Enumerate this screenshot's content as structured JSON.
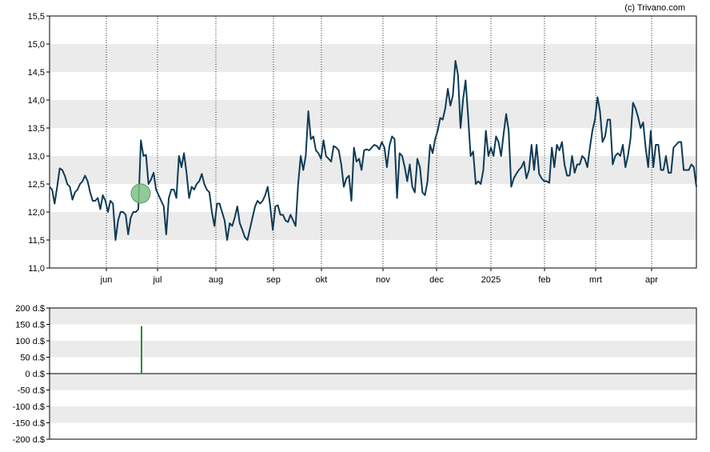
{
  "copyright": "(c) Trivano.com",
  "chart_data": [
    {
      "type": "line",
      "grid": true,
      "ylim": [
        11.0,
        15.5
      ],
      "y_ticks": [
        "15,5",
        "15,0",
        "14,5",
        "14,0",
        "13,5",
        "13,0",
        "12,5",
        "12,0",
        "11,5",
        "11,0"
      ],
      "x_ticks": [
        "jun",
        "jul",
        "aug",
        "sep",
        "okt",
        "nov",
        "dec",
        "2025",
        "feb",
        "mrt",
        "apr"
      ],
      "series": [
        {
          "color": "#0d3a55",
          "values": [
            12.45,
            12.4,
            12.15,
            12.45,
            12.78,
            12.75,
            12.65,
            12.5,
            12.45,
            12.22,
            12.35,
            12.4,
            12.5,
            12.55,
            12.65,
            12.55,
            12.35,
            12.2,
            12.2,
            12.25,
            12.05,
            12.3,
            12.2,
            12.0,
            12.2,
            12.15,
            11.5,
            11.85,
            12.0,
            12.0,
            11.95,
            11.6,
            11.9,
            12.0,
            12.0,
            12.05,
            13.28,
            13.0,
            13.02,
            12.5,
            12.58,
            12.7,
            12.4,
            12.3,
            12.2,
            12.1,
            11.6,
            12.25,
            12.4,
            12.4,
            12.25,
            13.0,
            12.8,
            13.05,
            12.7,
            12.25,
            12.45,
            12.4,
            12.5,
            12.55,
            12.68,
            12.5,
            12.4,
            12.35,
            12.0,
            11.75,
            12.15,
            12.15,
            12.0,
            11.85,
            11.5,
            11.8,
            11.75,
            11.9,
            12.1,
            11.8,
            11.68,
            11.55,
            11.5,
            11.7,
            11.9,
            12.1,
            12.2,
            12.15,
            12.2,
            12.3,
            12.45,
            12.1,
            11.68,
            12.1,
            12.12,
            11.95,
            11.95,
            11.85,
            11.82,
            11.95,
            11.85,
            11.75,
            12.5,
            13.0,
            12.75,
            13.0,
            13.8,
            13.3,
            13.35,
            13.1,
            13.05,
            12.95,
            13.28,
            13.0,
            12.95,
            12.9,
            13.18,
            13.15,
            13.1,
            12.85,
            12.45,
            12.6,
            12.65,
            12.2,
            13.15,
            12.9,
            12.95,
            12.75,
            13.1,
            13.12,
            13.1,
            13.15,
            13.2,
            13.18,
            13.12,
            13.25,
            13.15,
            12.8,
            13.18,
            13.35,
            13.3,
            12.25,
            13.05,
            13.0,
            12.8,
            12.55,
            12.85,
            12.45,
            12.35,
            12.95,
            12.8,
            12.35,
            12.3,
            12.55,
            13.2,
            13.05,
            13.3,
            13.45,
            13.68,
            13.65,
            13.85,
            14.2,
            13.9,
            14.08,
            14.7,
            14.45,
            13.5,
            14.0,
            14.35,
            13.7,
            13.0,
            13.08,
            12.5,
            12.55,
            12.5,
            12.75,
            13.45,
            13.0,
            13.15,
            13.0,
            13.35,
            13.25,
            13.0,
            13.4,
            13.75,
            13.45,
            12.45,
            12.6,
            12.68,
            12.75,
            12.8,
            12.9,
            12.6,
            12.75,
            13.2,
            12.75,
            13.2,
            12.68,
            12.6,
            12.55,
            12.55,
            12.52,
            13.15,
            12.8,
            13.2,
            13.1,
            13.25,
            12.85,
            12.65,
            12.65,
            13.0,
            12.7,
            12.85,
            12.85,
            13.0,
            12.95,
            12.8,
            13.15,
            13.45,
            13.65,
            14.05,
            13.8,
            13.25,
            13.35,
            13.65,
            13.65,
            12.85,
            13.0,
            13.05,
            13.0,
            13.2,
            12.8,
            13.0,
            13.3,
            13.95,
            13.85,
            13.7,
            13.5,
            13.6,
            13.15,
            12.8,
            13.45,
            12.8,
            13.2,
            13.2,
            12.75,
            12.75,
            13.0,
            12.7,
            12.7,
            13.15,
            13.2,
            13.25,
            13.25,
            12.75,
            12.75,
            12.75,
            12.85,
            12.8,
            12.45
          ]
        }
      ],
      "marker": {
        "near_x_tick": "jul",
        "value": 12.33,
        "color": "#7fbf87",
        "stroke": "#5a9e63"
      }
    },
    {
      "type": "bar",
      "grid": true,
      "ylim": [
        -200,
        200
      ],
      "y_ticks": [
        "200 d.$",
        "150 d.$",
        "100 d.$",
        "50 d.$",
        "0 d.$",
        "-50 d.$",
        "-100 d.$",
        "-150 d.$",
        "-200 d.$"
      ],
      "bars": [
        {
          "near_x_tick": "jul",
          "value": 145,
          "color": "#2f8a3a"
        }
      ]
    }
  ]
}
